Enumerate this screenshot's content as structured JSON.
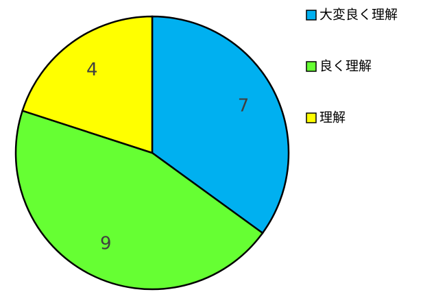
{
  "chart_data": {
    "type": "pie",
    "categories": [
      "大変良く理解",
      "良く理解",
      "理解"
    ],
    "values": [
      7,
      9,
      4
    ],
    "colors": [
      "#00b0f0",
      "#66ff33",
      "#ffff00"
    ],
    "legend": "right"
  }
}
